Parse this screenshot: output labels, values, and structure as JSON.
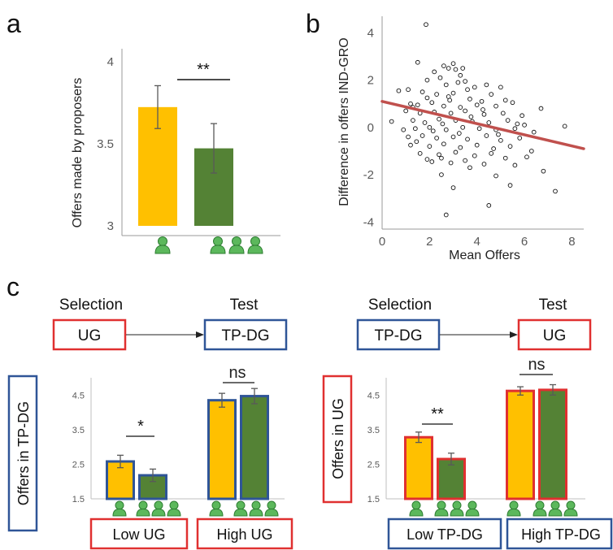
{
  "panels": {
    "a": "a",
    "b": "b",
    "c": "c"
  },
  "colors": {
    "yellow": "#FFC000",
    "green": "#548235",
    "icon_green": "#5CB85C",
    "regression": "#C0504D",
    "red_box": "#E03030",
    "blue_box": "#2F5597",
    "error": "#595959"
  },
  "icons": {
    "individual": "person-icon",
    "group": "three-persons-icon"
  },
  "chart_data": [
    {
      "id": "a",
      "type": "bar",
      "ylabel": "Offers made by proposers",
      "ylim": [
        3,
        4
      ],
      "yticks": [
        "3",
        "3.5",
        "4"
      ],
      "categories": [
        "individual",
        "group"
      ],
      "values": [
        3.72,
        3.47
      ],
      "errors": [
        0.13,
        0.15
      ],
      "bar_colors": [
        "#FFC000",
        "#548235"
      ],
      "significance": "**"
    },
    {
      "id": "b",
      "type": "scatter",
      "xlabel": "Mean Offers",
      "ylabel": "Difference in offers IND-GRO",
      "xlim": [
        0,
        8.5
      ],
      "ylim": [
        -4.3,
        4.7
      ],
      "xticks": [
        "0",
        "2",
        "4",
        "6",
        "8"
      ],
      "yticks": [
        "-4",
        "-2",
        "0",
        "2",
        "4"
      ],
      "regression": {
        "x": [
          0,
          8.5
        ],
        "y": [
          1.1,
          -0.9
        ]
      },
      "points": [
        [
          1.85,
          4.35
        ],
        [
          1.5,
          2.75
        ],
        [
          2.6,
          2.6
        ],
        [
          3.0,
          2.7
        ],
        [
          2.8,
          2.5
        ],
        [
          3.1,
          2.45
        ],
        [
          3.4,
          2.5
        ],
        [
          2.2,
          2.35
        ],
        [
          2.45,
          2.1
        ],
        [
          3.3,
          2.2
        ],
        [
          3.5,
          1.95
        ],
        [
          1.9,
          2.0
        ],
        [
          2.7,
          1.8
        ],
        [
          3.2,
          1.9
        ],
        [
          0.7,
          1.55
        ],
        [
          1.1,
          1.6
        ],
        [
          1.7,
          1.5
        ],
        [
          3.6,
          1.6
        ],
        [
          3.9,
          1.7
        ],
        [
          4.4,
          1.8
        ],
        [
          2.3,
          1.4
        ],
        [
          3.0,
          1.45
        ],
        [
          4.6,
          1.4
        ],
        [
          5.0,
          1.7
        ],
        [
          1.9,
          1.25
        ],
        [
          2.8,
          1.3
        ],
        [
          3.7,
          1.2
        ],
        [
          4.2,
          1.1
        ],
        [
          5.2,
          1.15
        ],
        [
          1.2,
          1.0
        ],
        [
          1.5,
          0.95
        ],
        [
          2.1,
          1.05
        ],
        [
          2.6,
          0.9
        ],
        [
          3.3,
          0.85
        ],
        [
          4.0,
          0.95
        ],
        [
          4.8,
          0.9
        ],
        [
          5.5,
          1.05
        ],
        [
          6.7,
          0.8
        ],
        [
          1.0,
          0.7
        ],
        [
          1.6,
          0.6
        ],
        [
          2.2,
          0.65
        ],
        [
          2.9,
          0.6
        ],
        [
          3.5,
          0.7
        ],
        [
          4.3,
          0.55
        ],
        [
          5.1,
          0.6
        ],
        [
          5.9,
          0.5
        ],
        [
          0.4,
          0.25
        ],
        [
          1.3,
          0.3
        ],
        [
          1.8,
          0.2
        ],
        [
          2.4,
          0.35
        ],
        [
          3.1,
          0.3
        ],
        [
          3.8,
          0.25
        ],
        [
          4.5,
          0.2
        ],
        [
          5.3,
          0.3
        ],
        [
          6.0,
          0.1
        ],
        [
          7.7,
          0.05
        ],
        [
          0.9,
          -0.1
        ],
        [
          1.4,
          -0.05
        ],
        [
          2.0,
          0.0
        ],
        [
          2.7,
          -0.1
        ],
        [
          3.4,
          0.0
        ],
        [
          4.1,
          -0.05
        ],
        [
          4.8,
          -0.1
        ],
        [
          5.6,
          -0.05
        ],
        [
          6.4,
          -0.2
        ],
        [
          1.1,
          -0.4
        ],
        [
          1.7,
          -0.35
        ],
        [
          2.3,
          -0.45
        ],
        [
          3.0,
          -0.4
        ],
        [
          3.6,
          -0.5
        ],
        [
          4.4,
          -0.35
        ],
        [
          5.0,
          -0.55
        ],
        [
          5.8,
          -0.45
        ],
        [
          1.2,
          -0.75
        ],
        [
          2.0,
          -0.8
        ],
        [
          2.6,
          -0.7
        ],
        [
          3.3,
          -0.85
        ],
        [
          4.0,
          -0.75
        ],
        [
          4.7,
          -0.9
        ],
        [
          5.4,
          -0.8
        ],
        [
          6.3,
          -1.0
        ],
        [
          1.6,
          -1.1
        ],
        [
          2.4,
          -1.15
        ],
        [
          3.1,
          -1.05
        ],
        [
          3.9,
          -1.2
        ],
        [
          4.6,
          -1.1
        ],
        [
          5.2,
          -1.3
        ],
        [
          6.1,
          -1.25
        ],
        [
          2.1,
          -1.45
        ],
        [
          2.9,
          -1.5
        ],
        [
          3.7,
          -1.7
        ],
        [
          4.3,
          -1.55
        ],
        [
          5.6,
          -1.6
        ],
        [
          1.9,
          -1.35
        ],
        [
          2.5,
          -1.3
        ],
        [
          3.5,
          -1.4
        ],
        [
          6.8,
          -1.85
        ],
        [
          2.5,
          -2.0
        ],
        [
          4.8,
          -2.05
        ],
        [
          3.0,
          -2.55
        ],
        [
          5.4,
          -2.45
        ],
        [
          7.3,
          -2.7
        ],
        [
          4.5,
          -3.3
        ],
        [
          2.7,
          -3.7
        ],
        [
          1.3,
          0.85
        ],
        [
          2.85,
          1.15
        ],
        [
          3.75,
          0.45
        ],
        [
          4.9,
          -0.3
        ],
        [
          2.15,
          -0.15
        ],
        [
          3.25,
          -0.25
        ],
        [
          4.25,
          0.75
        ],
        [
          1.45,
          -0.6
        ],
        [
          5.7,
          0.15
        ],
        [
          2.55,
          0.15
        ]
      ]
    },
    {
      "id": "c-left",
      "type": "bar",
      "ylabel": "Offers in TP-DG",
      "ylim": [
        1.5,
        5
      ],
      "yticks": [
        "1.5",
        "2.5",
        "3.5",
        "4.5"
      ],
      "groups": [
        "Low UG",
        "High UG"
      ],
      "series": [
        {
          "values": [
            2.58,
            4.35
          ],
          "errors": [
            0.18,
            0.2
          ]
        },
        {
          "values": [
            2.18,
            4.47
          ],
          "errors": [
            0.18,
            0.22
          ]
        }
      ],
      "significance": [
        "*",
        "ns"
      ],
      "flow": {
        "from_title": "Selection",
        "from_box": "UG",
        "to_title": "Test",
        "to_box": "TP-DG"
      }
    },
    {
      "id": "c-right",
      "type": "bar",
      "ylabel": "Offers in UG",
      "ylim": [
        1.5,
        5
      ],
      "yticks": [
        "1.5",
        "2.5",
        "3.5",
        "4.5"
      ],
      "groups": [
        "Low TP-DG",
        "High TP-DG"
      ],
      "series": [
        {
          "values": [
            3.28,
            4.62
          ],
          "errors": [
            0.15,
            0.12
          ]
        },
        {
          "values": [
            2.65,
            4.65
          ],
          "errors": [
            0.17,
            0.15
          ]
        }
      ],
      "significance": [
        "**",
        "ns"
      ],
      "flow": {
        "from_title": "Selection",
        "from_box": "TP-DG",
        "to_title": "Test",
        "to_box": "UG"
      }
    }
  ]
}
